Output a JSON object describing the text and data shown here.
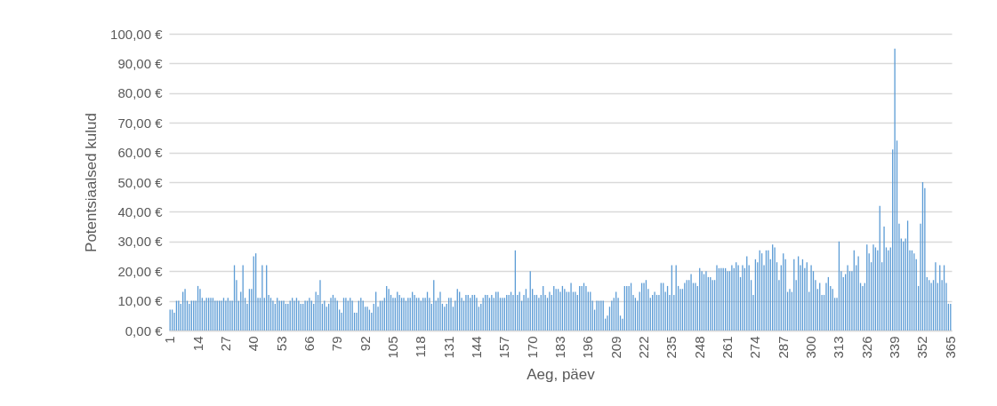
{
  "chart_data": {
    "type": "bar",
    "xlabel": "Aeg, päev",
    "ylabel": "Potentsiaalsed kulud",
    "color": "#5b9bd5",
    "grid": "y",
    "ylim": [
      0,
      100
    ],
    "yticks": [
      {
        "value": 0,
        "label": "0,00 €"
      },
      {
        "value": 10,
        "label": "10,00 €"
      },
      {
        "value": 20,
        "label": "20,00 €"
      },
      {
        "value": 30,
        "label": "30,00 €"
      },
      {
        "value": 40,
        "label": "40,00 €"
      },
      {
        "value": 50,
        "label": "50,00 €"
      },
      {
        "value": 60,
        "label": "60,00 €"
      },
      {
        "value": 70,
        "label": "70,00 €"
      },
      {
        "value": 80,
        "label": "80,00 €"
      },
      {
        "value": 90,
        "label": "90,00 €"
      },
      {
        "value": 100,
        "label": "100,00 €"
      }
    ],
    "categories": [
      "1",
      null,
      null,
      null,
      null,
      null,
      null,
      null,
      null,
      null,
      null,
      null,
      null,
      "14",
      null,
      null,
      null,
      null,
      null,
      null,
      null,
      null,
      null,
      null,
      null,
      null,
      "27",
      null,
      null,
      null,
      null,
      null,
      null,
      null,
      null,
      null,
      null,
      null,
      null,
      "40",
      null,
      null,
      null,
      null,
      null,
      null,
      null,
      null,
      null,
      null,
      null,
      null,
      "53",
      null,
      null,
      null,
      null,
      null,
      null,
      null,
      null,
      null,
      null,
      null,
      null,
      "66",
      null,
      null,
      null,
      null,
      null,
      null,
      null,
      null,
      null,
      null,
      null,
      null,
      "79",
      null,
      null,
      null,
      null,
      null,
      null,
      null,
      null,
      null,
      null,
      null,
      null,
      "92",
      null,
      null,
      null,
      null,
      null,
      null,
      null,
      null,
      null,
      null,
      null,
      null,
      "105",
      null,
      null,
      null,
      null,
      null,
      null,
      null,
      null,
      null,
      null,
      null,
      null,
      "118",
      null,
      null,
      null,
      null,
      null,
      null,
      null,
      null,
      null,
      null,
      null,
      null,
      "131",
      null,
      null,
      null,
      null,
      null,
      null,
      null,
      null,
      null,
      null,
      null,
      null,
      "144",
      null,
      null,
      null,
      null,
      null,
      null,
      null,
      null,
      null,
      null,
      null,
      null,
      "157",
      null,
      null,
      null,
      null,
      null,
      null,
      null,
      null,
      null,
      null,
      null,
      null,
      "170",
      null,
      null,
      null,
      null,
      null,
      null,
      null,
      null,
      null,
      null,
      null,
      null,
      "183",
      null,
      null,
      null,
      null,
      null,
      null,
      null,
      null,
      null,
      null,
      null,
      null,
      "196",
      null,
      null,
      null,
      null,
      null,
      null,
      null,
      null,
      null,
      null,
      null,
      null,
      "209",
      null,
      null,
      null,
      null,
      null,
      null,
      null,
      null,
      null,
      null,
      null,
      null,
      "222",
      null,
      null,
      null,
      null,
      null,
      null,
      null,
      null,
      null,
      null,
      null,
      null,
      "235",
      null,
      null,
      null,
      null,
      null,
      null,
      null,
      null,
      null,
      null,
      null,
      null,
      "248",
      null,
      null,
      null,
      null,
      null,
      null,
      null,
      null,
      null,
      null,
      null,
      null,
      "261",
      null,
      null,
      null,
      null,
      null,
      null,
      null,
      null,
      null,
      null,
      null,
      null,
      "274",
      null,
      null,
      null,
      null,
      null,
      null,
      null,
      null,
      null,
      null,
      null,
      null,
      "287",
      null,
      null,
      null,
      null,
      null,
      null,
      null,
      null,
      null,
      null,
      null,
      null,
      "300",
      null,
      null,
      null,
      null,
      null,
      null,
      null,
      null,
      null,
      null,
      null,
      null,
      "313",
      null,
      null,
      null,
      null,
      null,
      null,
      null,
      null,
      null,
      null,
      null,
      null,
      "326",
      null,
      null,
      null,
      null,
      null,
      null,
      null,
      null,
      null,
      null,
      null,
      null,
      "339",
      null,
      null,
      null,
      null,
      null,
      null,
      null,
      null,
      null,
      null,
      null,
      null,
      "352",
      null,
      null,
      null,
      null,
      null,
      null,
      null,
      null,
      null,
      null,
      null,
      null,
      "365"
    ],
    "values": [
      7,
      7,
      6,
      10,
      10,
      9,
      13,
      14,
      10,
      9,
      10,
      10,
      10,
      15,
      14,
      11,
      10,
      11,
      11,
      11,
      11,
      10,
      10,
      10,
      10,
      11,
      10,
      11,
      10,
      10,
      22,
      17,
      10,
      13,
      22,
      11,
      9,
      14,
      14,
      25,
      26,
      11,
      11,
      22,
      11,
      22,
      12,
      11,
      10,
      9,
      11,
      10,
      10,
      10,
      9,
      9,
      10,
      11,
      10,
      11,
      10,
      9,
      9,
      10,
      10,
      11,
      10,
      9,
      13,
      12,
      17,
      9,
      10,
      8,
      9,
      11,
      12,
      11,
      10,
      7,
      6,
      11,
      11,
      10,
      11,
      10,
      6,
      6,
      10,
      11,
      10,
      8,
      8,
      7,
      6,
      9,
      13,
      8,
      10,
      10,
      11,
      15,
      14,
      12,
      11,
      11,
      13,
      12,
      11,
      11,
      10,
      11,
      11,
      13,
      12,
      11,
      11,
      10,
      11,
      11,
      13,
      11,
      9,
      17,
      10,
      11,
      13,
      9,
      8,
      9,
      11,
      11,
      8,
      10,
      14,
      13,
      11,
      10,
      12,
      12,
      11,
      12,
      12,
      11,
      8,
      9,
      11,
      12,
      12,
      11,
      12,
      11,
      13,
      13,
      11,
      11,
      11,
      12,
      12,
      13,
      12,
      27,
      12,
      13,
      10,
      12,
      14,
      11,
      20,
      14,
      12,
      12,
      11,
      12,
      15,
      12,
      11,
      13,
      12,
      15,
      14,
      14,
      13,
      15,
      14,
      13,
      13,
      16,
      13,
      13,
      12,
      15,
      15,
      16,
      15,
      13,
      13,
      10,
      7,
      10,
      10,
      10,
      10,
      4,
      5,
      8,
      10,
      11,
      13,
      11,
      5,
      4,
      15,
      15,
      15,
      16,
      12,
      11,
      10,
      13,
      16,
      16,
      17,
      14,
      11,
      12,
      13,
      12,
      12,
      16,
      16,
      13,
      15,
      12,
      22,
      12,
      22,
      15,
      14,
      14,
      16,
      17,
      17,
      19,
      16,
      16,
      15,
      21,
      20,
      19,
      20,
      18,
      18,
      17,
      17,
      22,
      21,
      21,
      21,
      21,
      20,
      20,
      22,
      21,
      23,
      22,
      18,
      22,
      21,
      25,
      22,
      17,
      12,
      24,
      23,
      27,
      26,
      22,
      27,
      27,
      24,
      29,
      28,
      23,
      17,
      22,
      26,
      24,
      13,
      14,
      13,
      24,
      17,
      25,
      22,
      24,
      21,
      23,
      13,
      22,
      20,
      17,
      14,
      16,
      12,
      12,
      16,
      18,
      15,
      14,
      11,
      11,
      30,
      20,
      18,
      19,
      22,
      20,
      20,
      27,
      22,
      25,
      16,
      15,
      16,
      29,
      26,
      23,
      29,
      28,
      27,
      42,
      23,
      35,
      28,
      27,
      28,
      61,
      95,
      64,
      36,
      31,
      30,
      31,
      37,
      27,
      27,
      26,
      24,
      15,
      36,
      50,
      48,
      18,
      17,
      16,
      17,
      23,
      16,
      22,
      17,
      22,
      16,
      9,
      9
    ]
  }
}
